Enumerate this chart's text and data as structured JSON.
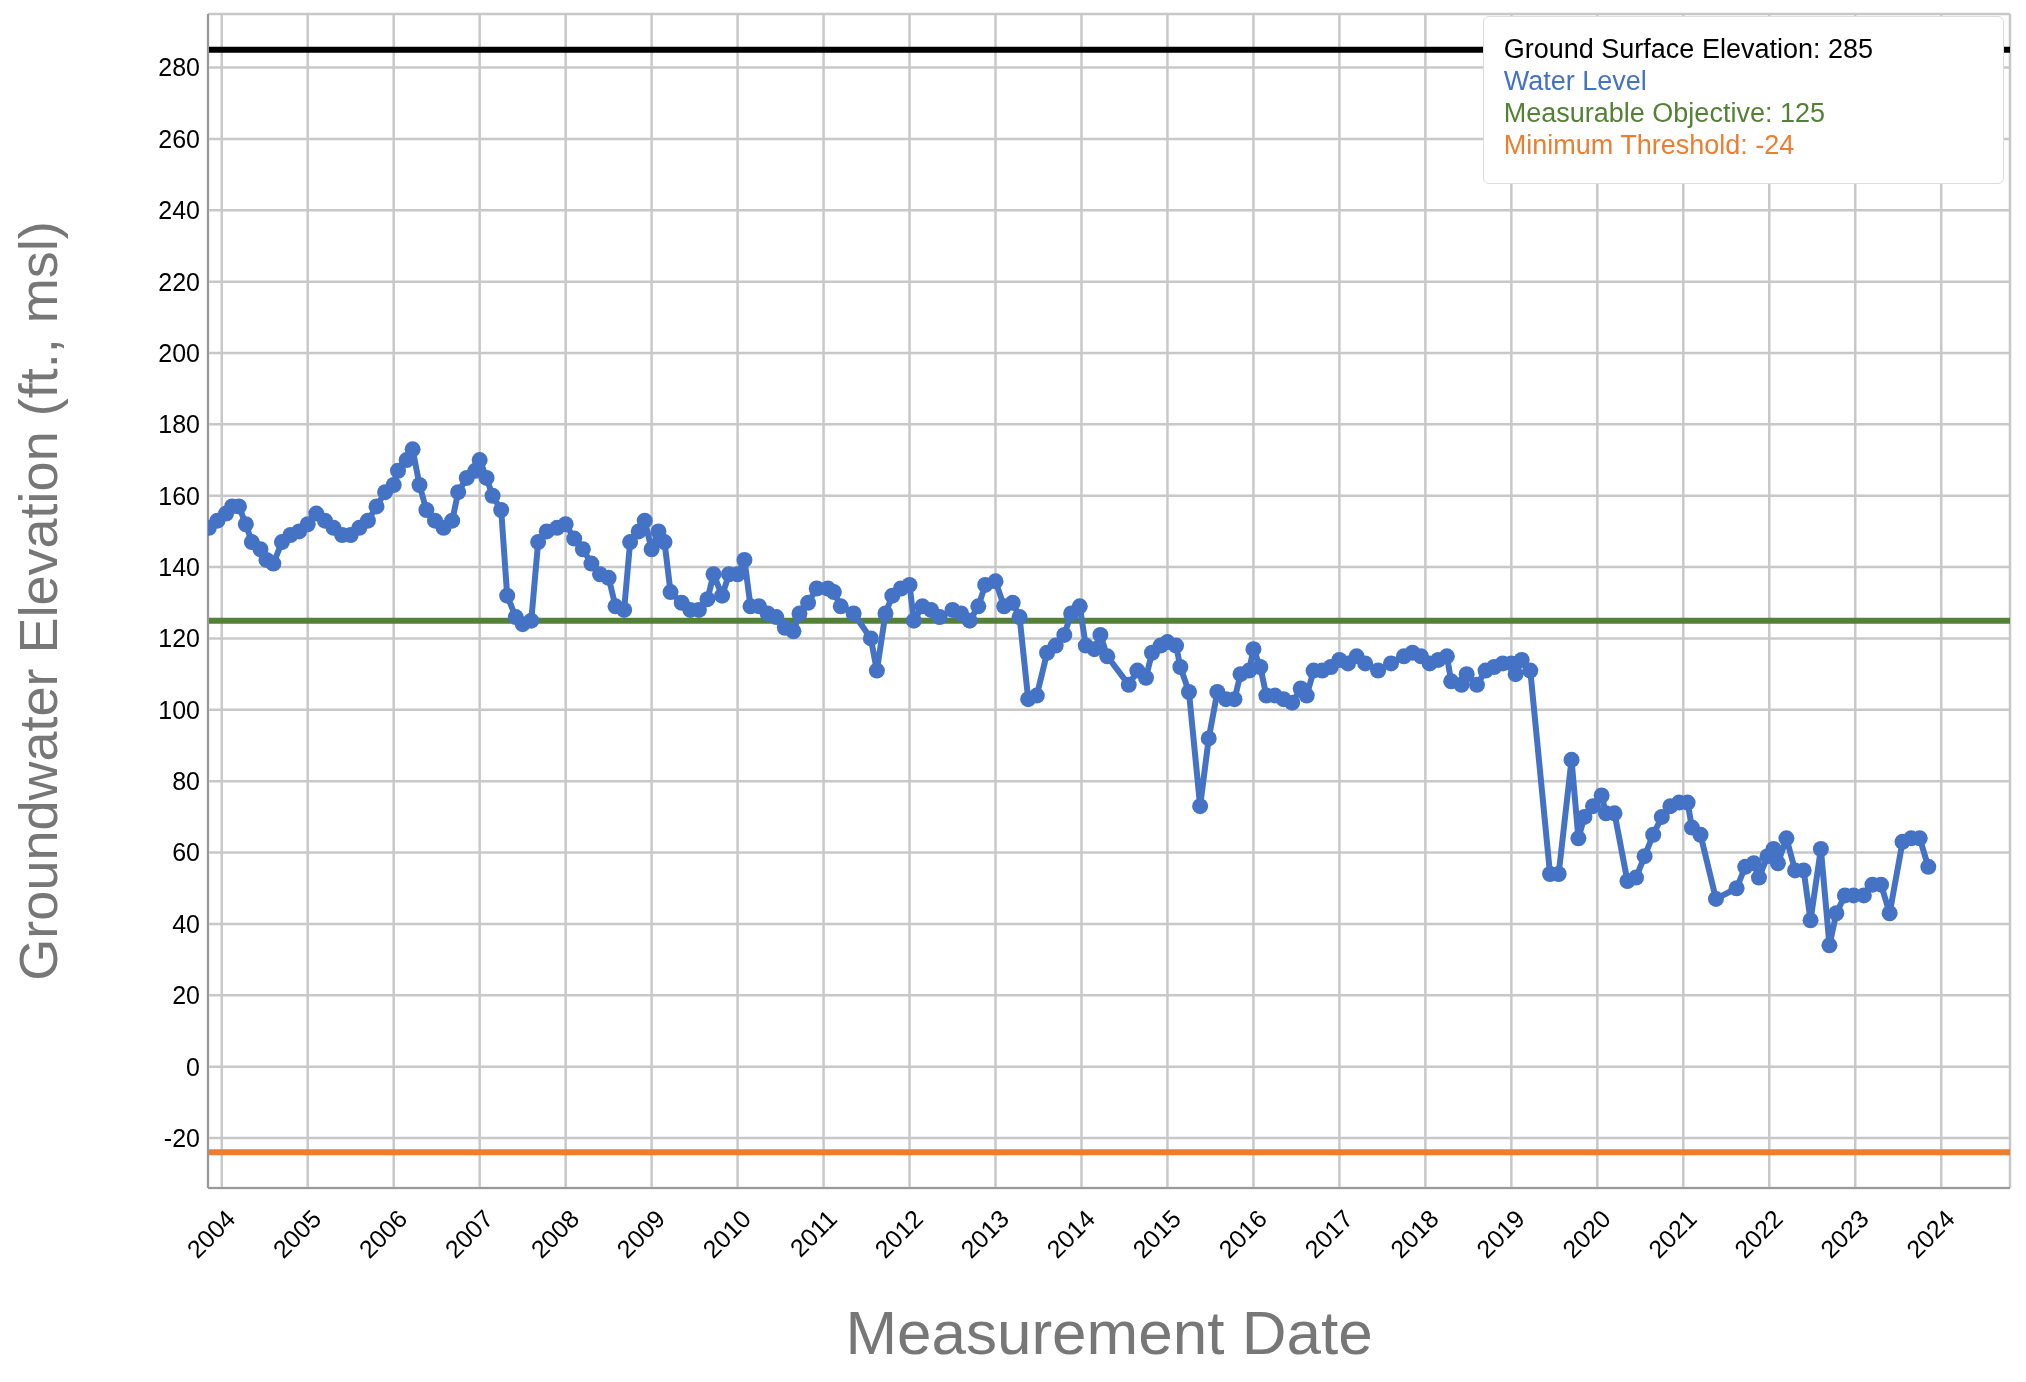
{
  "chart_data": {
    "type": "line",
    "xlabel": "Measurement Date",
    "ylabel": "Groundwater Elevation (ft., msl)",
    "xlim": [
      2003.84,
      2024.8
    ],
    "xticks": [
      2004,
      2005,
      2006,
      2007,
      2008,
      2009,
      2010,
      2011,
      2012,
      2013,
      2014,
      2015,
      2016,
      2017,
      2018,
      2019,
      2020,
      2021,
      2022,
      2023,
      2024
    ],
    "ylim": [
      -34,
      295
    ],
    "yticks": [
      -20,
      0,
      20,
      40,
      60,
      80,
      100,
      120,
      140,
      160,
      180,
      200,
      220,
      240,
      260,
      280
    ],
    "grid": true,
    "legend": "top right",
    "marker": "circle",
    "line_style": "solid",
    "series": [
      {
        "name": "Water Level",
        "color": "#4472c4",
        "x": [
          2003.85,
          2003.95,
          2004.05,
          2004.12,
          2004.2,
          2004.28,
          2004.35,
          2004.45,
          2004.52,
          2004.6,
          2004.7,
          2004.8,
          2004.9,
          2005.0,
          2005.1,
          2005.2,
          2005.3,
          2005.4,
          2005.5,
          2005.6,
          2005.7,
          2005.8,
          2005.9,
          2006.0,
          2006.05,
          2006.15,
          2006.22,
          2006.3,
          2006.38,
          2006.48,
          2006.58,
          2006.68,
          2006.75,
          2006.85,
          2006.95,
          2007.0,
          2007.08,
          2007.15,
          2007.25,
          2007.32,
          2007.42,
          2007.5,
          2007.6,
          2007.68,
          2007.78,
          2007.9,
          2008.0,
          2008.1,
          2008.2,
          2008.3,
          2008.4,
          2008.5,
          2008.58,
          2008.68,
          2008.75,
          2008.85,
          2008.92,
          2009.0,
          2009.08,
          2009.15,
          2009.22,
          2009.35,
          2009.45,
          2009.55,
          2009.65,
          2009.72,
          2009.82,
          2009.9,
          2010.0,
          2010.08,
          2010.15,
          2010.25,
          2010.35,
          2010.45,
          2010.55,
          2010.65,
          2010.72,
          2010.82,
          2010.92,
          2011.05,
          2011.12,
          2011.2,
          2011.35,
          2011.55,
          2011.62,
          2011.72,
          2011.8,
          2011.9,
          2012.0,
          2012.05,
          2012.15,
          2012.25,
          2012.35,
          2012.5,
          2012.6,
          2012.7,
          2012.8,
          2012.88,
          2013.0,
          2013.1,
          2013.2,
          2013.28,
          2013.38,
          2013.48,
          2013.6,
          2013.7,
          2013.8,
          2013.88,
          2013.98,
          2014.05,
          2014.15,
          2014.22,
          2014.3,
          2014.55,
          2014.65,
          2014.75,
          2014.82,
          2014.92,
          2015.0,
          2015.1,
          2015.15,
          2015.25,
          2015.38,
          2015.48,
          2015.58,
          2015.68,
          2015.78,
          2015.85,
          2015.95,
          2016.0,
          2016.08,
          2016.15,
          2016.25,
          2016.35,
          2016.45,
          2016.55,
          2016.62,
          2016.7,
          2016.8,
          2016.9,
          2017.0,
          2017.1,
          2017.2,
          2017.3,
          2017.45,
          2017.6,
          2017.75,
          2017.85,
          2017.95,
          2018.05,
          2018.15,
          2018.25,
          2018.3,
          2018.42,
          2018.48,
          2018.6,
          2018.7,
          2018.8,
          2018.9,
          2019.0,
          2019.05,
          2019.12,
          2019.22,
          2019.45,
          2019.55,
          2019.7,
          2019.78,
          2019.85,
          2019.95,
          2020.05,
          2020.1,
          2020.2,
          2020.35,
          2020.45,
          2020.55,
          2020.65,
          2020.75,
          2020.85,
          2020.95,
          2021.05,
          2021.1,
          2021.2,
          2021.38,
          2021.62,
          2021.72,
          2021.82,
          2021.88,
          2021.98,
          2022.05,
          2022.1,
          2022.2,
          2022.3,
          2022.4,
          2022.48,
          2022.6,
          2022.7,
          2022.78,
          2022.88,
          2022.98,
          2023.1,
          2023.2,
          2023.3,
          2023.4,
          2023.55,
          2023.65,
          2023.75,
          2023.85
        ],
        "values": [
          151,
          153,
          155,
          157,
          157,
          152,
          147,
          145,
          142,
          141,
          147,
          149,
          150,
          152,
          155,
          153,
          151,
          149,
          149,
          151,
          153,
          157,
          161,
          163,
          167,
          170,
          173,
          163,
          156,
          153,
          151,
          153,
          161,
          165,
          167,
          170,
          165,
          160,
          156,
          132,
          126,
          124,
          125,
          147,
          150,
          151,
          152,
          148,
          145,
          141,
          138,
          137,
          129,
          128,
          147,
          150,
          153,
          145,
          150,
          147,
          133,
          130,
          128,
          128,
          131,
          138,
          132,
          138,
          138,
          142,
          129,
          129,
          127,
          126,
          123,
          122,
          127,
          130,
          134,
          134,
          133,
          129,
          127,
          120,
          111,
          127,
          132,
          134,
          135,
          125,
          129,
          128,
          126,
          128,
          127,
          125,
          129,
          135,
          136,
          129,
          130,
          126,
          103,
          104,
          116,
          118,
          121,
          127,
          129,
          118,
          117,
          121,
          115,
          107,
          111,
          109,
          116,
          118,
          119,
          118,
          112,
          105,
          73,
          92,
          105,
          103,
          103,
          110,
          111,
          117,
          112,
          104,
          104,
          103,
          102,
          106,
          104,
          111,
          111,
          112,
          114,
          113,
          115,
          113,
          111,
          113,
          115,
          116,
          115,
          113,
          114,
          115,
          108,
          107,
          110,
          107,
          111,
          112,
          113,
          113,
          110,
          114,
          111,
          54,
          54,
          86,
          64,
          70,
          73,
          76,
          71,
          71,
          52,
          53,
          59,
          65,
          70,
          73,
          74,
          74,
          67,
          65,
          47,
          50,
          56,
          57,
          53,
          59,
          61,
          57,
          64,
          55,
          55,
          41,
          61,
          34,
          43,
          48,
          48,
          48,
          51,
          51,
          43,
          63,
          64,
          64,
          56
        ]
      }
    ],
    "ref_lines": [
      {
        "axis": "y",
        "value": 285,
        "label": "Ground Surface Elevation: 285",
        "color": "#000000"
      },
      {
        "axis": "y",
        "value": 125,
        "label": "Measurable Objective: 125",
        "color": "#538135"
      },
      {
        "axis": "y",
        "value": -24,
        "label": "Minimum Threshold: -24",
        "color": "#ed7d31"
      }
    ]
  }
}
